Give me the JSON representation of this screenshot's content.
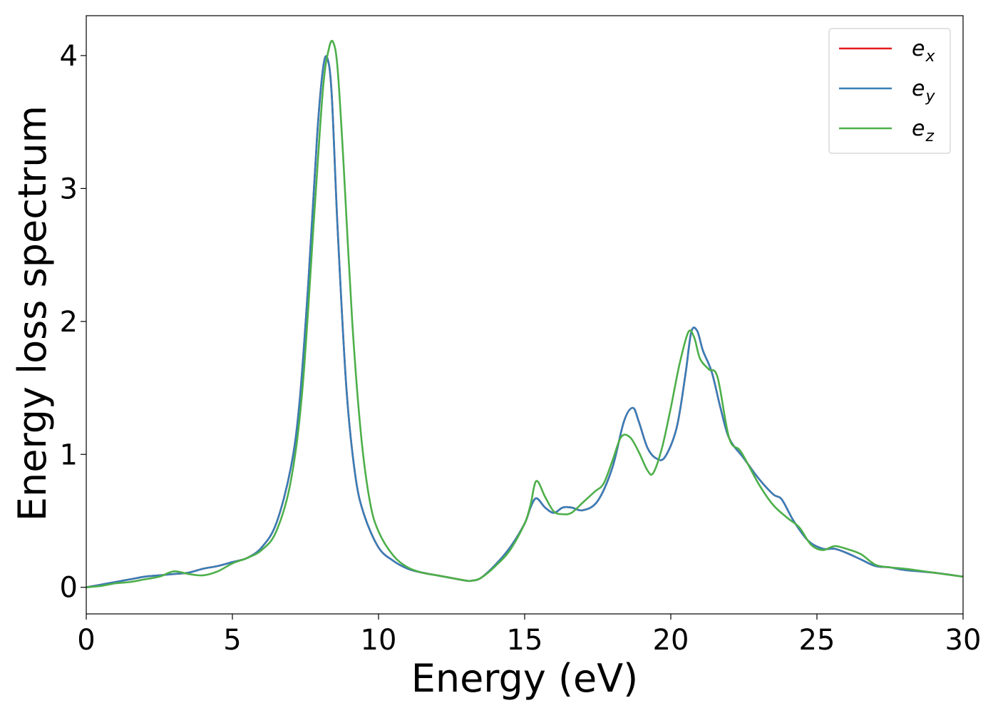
{
  "chart_data": {
    "type": "line",
    "title": "",
    "xlabel": "Energy (eV)",
    "ylabel": "Energy loss spectrum",
    "xlim": [
      0,
      30
    ],
    "ylim": [
      -0.2,
      4.3
    ],
    "xticks": [
      0,
      5,
      10,
      15,
      20,
      25,
      30
    ],
    "yticks": [
      0,
      1,
      2,
      3,
      4
    ],
    "grid": false,
    "legend_position": "top-right",
    "series": [
      {
        "name": "e_x",
        "base": "e",
        "sub": "x",
        "color": "#e41a1c",
        "x": [
          0,
          0.5,
          1,
          1.5,
          2,
          2.5,
          3,
          3.5,
          4,
          4.5,
          5,
          5.5,
          6,
          6.5,
          7,
          7.3,
          7.6,
          7.9,
          8.1,
          8.25,
          8.4,
          8.6,
          8.9,
          9.2,
          9.5,
          10,
          10.5,
          11,
          11.5,
          12,
          12.5,
          13,
          13.2,
          13.5,
          14,
          14.5,
          15,
          15.2,
          15.4,
          15.7,
          16,
          16.3,
          16.6,
          17,
          17.5,
          18,
          18.4,
          18.7,
          18.9,
          19.2,
          19.5,
          19.8,
          20.2,
          20.5,
          20.7,
          20.9,
          21.1,
          21.4,
          21.7,
          22,
          22.5,
          23,
          23.5,
          23.8,
          24.2,
          24.7,
          25.2,
          25.6,
          26,
          26.5,
          27,
          27.5,
          28,
          29,
          30
        ],
        "y": [
          0.0,
          0.02,
          0.04,
          0.06,
          0.08,
          0.09,
          0.1,
          0.11,
          0.14,
          0.16,
          0.19,
          0.22,
          0.3,
          0.48,
          0.9,
          1.4,
          2.3,
          3.4,
          3.9,
          3.98,
          3.7,
          2.7,
          1.5,
          0.85,
          0.55,
          0.3,
          0.2,
          0.14,
          0.11,
          0.09,
          0.07,
          0.05,
          0.05,
          0.07,
          0.17,
          0.3,
          0.48,
          0.6,
          0.67,
          0.6,
          0.56,
          0.6,
          0.6,
          0.58,
          0.65,
          0.9,
          1.25,
          1.35,
          1.25,
          1.05,
          0.97,
          0.98,
          1.2,
          1.6,
          1.92,
          1.93,
          1.78,
          1.62,
          1.35,
          1.12,
          0.97,
          0.82,
          0.7,
          0.66,
          0.5,
          0.35,
          0.29,
          0.29,
          0.26,
          0.21,
          0.16,
          0.15,
          0.13,
          0.11,
          0.08
        ]
      },
      {
        "name": "e_y",
        "base": "e",
        "sub": "y",
        "color": "#377eb8",
        "x": [
          0,
          0.5,
          1,
          1.5,
          2,
          2.5,
          3,
          3.5,
          4,
          4.5,
          5,
          5.5,
          6,
          6.5,
          7,
          7.3,
          7.6,
          7.9,
          8.1,
          8.25,
          8.4,
          8.6,
          8.9,
          9.2,
          9.5,
          10,
          10.5,
          11,
          11.5,
          12,
          12.5,
          13,
          13.2,
          13.5,
          14,
          14.5,
          15,
          15.2,
          15.4,
          15.7,
          16,
          16.3,
          16.6,
          17,
          17.5,
          18,
          18.4,
          18.7,
          18.9,
          19.2,
          19.5,
          19.8,
          20.2,
          20.5,
          20.7,
          20.9,
          21.1,
          21.4,
          21.7,
          22,
          22.5,
          23,
          23.5,
          23.8,
          24.2,
          24.7,
          25.2,
          25.6,
          26,
          26.5,
          27,
          27.5,
          28,
          29,
          30
        ],
        "y": [
          0.0,
          0.02,
          0.04,
          0.06,
          0.08,
          0.09,
          0.1,
          0.11,
          0.14,
          0.16,
          0.19,
          0.22,
          0.3,
          0.48,
          0.9,
          1.4,
          2.3,
          3.4,
          3.9,
          3.98,
          3.7,
          2.7,
          1.5,
          0.85,
          0.55,
          0.3,
          0.2,
          0.14,
          0.11,
          0.09,
          0.07,
          0.05,
          0.05,
          0.07,
          0.17,
          0.3,
          0.48,
          0.6,
          0.67,
          0.6,
          0.56,
          0.6,
          0.6,
          0.58,
          0.65,
          0.9,
          1.25,
          1.35,
          1.25,
          1.05,
          0.97,
          0.98,
          1.2,
          1.6,
          1.92,
          1.93,
          1.78,
          1.62,
          1.35,
          1.12,
          0.97,
          0.82,
          0.7,
          0.66,
          0.5,
          0.35,
          0.29,
          0.29,
          0.26,
          0.21,
          0.16,
          0.15,
          0.13,
          0.11,
          0.08
        ]
      },
      {
        "name": "e_z",
        "base": "e",
        "sub": "z",
        "color": "#4daf4a",
        "x": [
          0,
          0.5,
          1,
          1.5,
          2,
          2.5,
          3,
          3.5,
          4,
          4.5,
          5,
          5.5,
          6,
          6.5,
          7,
          7.4,
          7.8,
          8.1,
          8.3,
          8.45,
          8.6,
          8.8,
          9.1,
          9.4,
          9.7,
          10,
          10.5,
          11,
          11.5,
          12,
          12.5,
          13,
          13.2,
          13.5,
          14,
          14.5,
          15,
          15.2,
          15.4,
          15.7,
          16,
          16.3,
          16.6,
          17,
          17.4,
          17.7,
          18,
          18.3,
          18.6,
          18.9,
          19.2,
          19.4,
          19.7,
          20,
          20.3,
          20.6,
          20.8,
          21.0,
          21.3,
          21.6,
          22,
          22.4,
          23,
          23.5,
          24,
          24.4,
          24.8,
          25.2,
          25.6,
          26,
          26.5,
          27,
          27.5,
          28,
          29,
          30
        ],
        "y": [
          0.0,
          0.01,
          0.03,
          0.04,
          0.06,
          0.08,
          0.12,
          0.1,
          0.09,
          0.12,
          0.18,
          0.22,
          0.28,
          0.42,
          0.8,
          1.5,
          2.8,
          3.75,
          4.05,
          4.1,
          3.9,
          3.2,
          2.0,
          1.15,
          0.65,
          0.42,
          0.24,
          0.15,
          0.11,
          0.09,
          0.07,
          0.05,
          0.05,
          0.07,
          0.16,
          0.28,
          0.48,
          0.62,
          0.8,
          0.68,
          0.57,
          0.55,
          0.56,
          0.64,
          0.72,
          0.78,
          0.95,
          1.13,
          1.13,
          1.02,
          0.88,
          0.86,
          1.05,
          1.35,
          1.68,
          1.92,
          1.88,
          1.72,
          1.64,
          1.58,
          1.12,
          1.02,
          0.78,
          0.62,
          0.52,
          0.45,
          0.32,
          0.28,
          0.31,
          0.29,
          0.25,
          0.17,
          0.15,
          0.14,
          0.11,
          0.08
        ]
      }
    ]
  }
}
